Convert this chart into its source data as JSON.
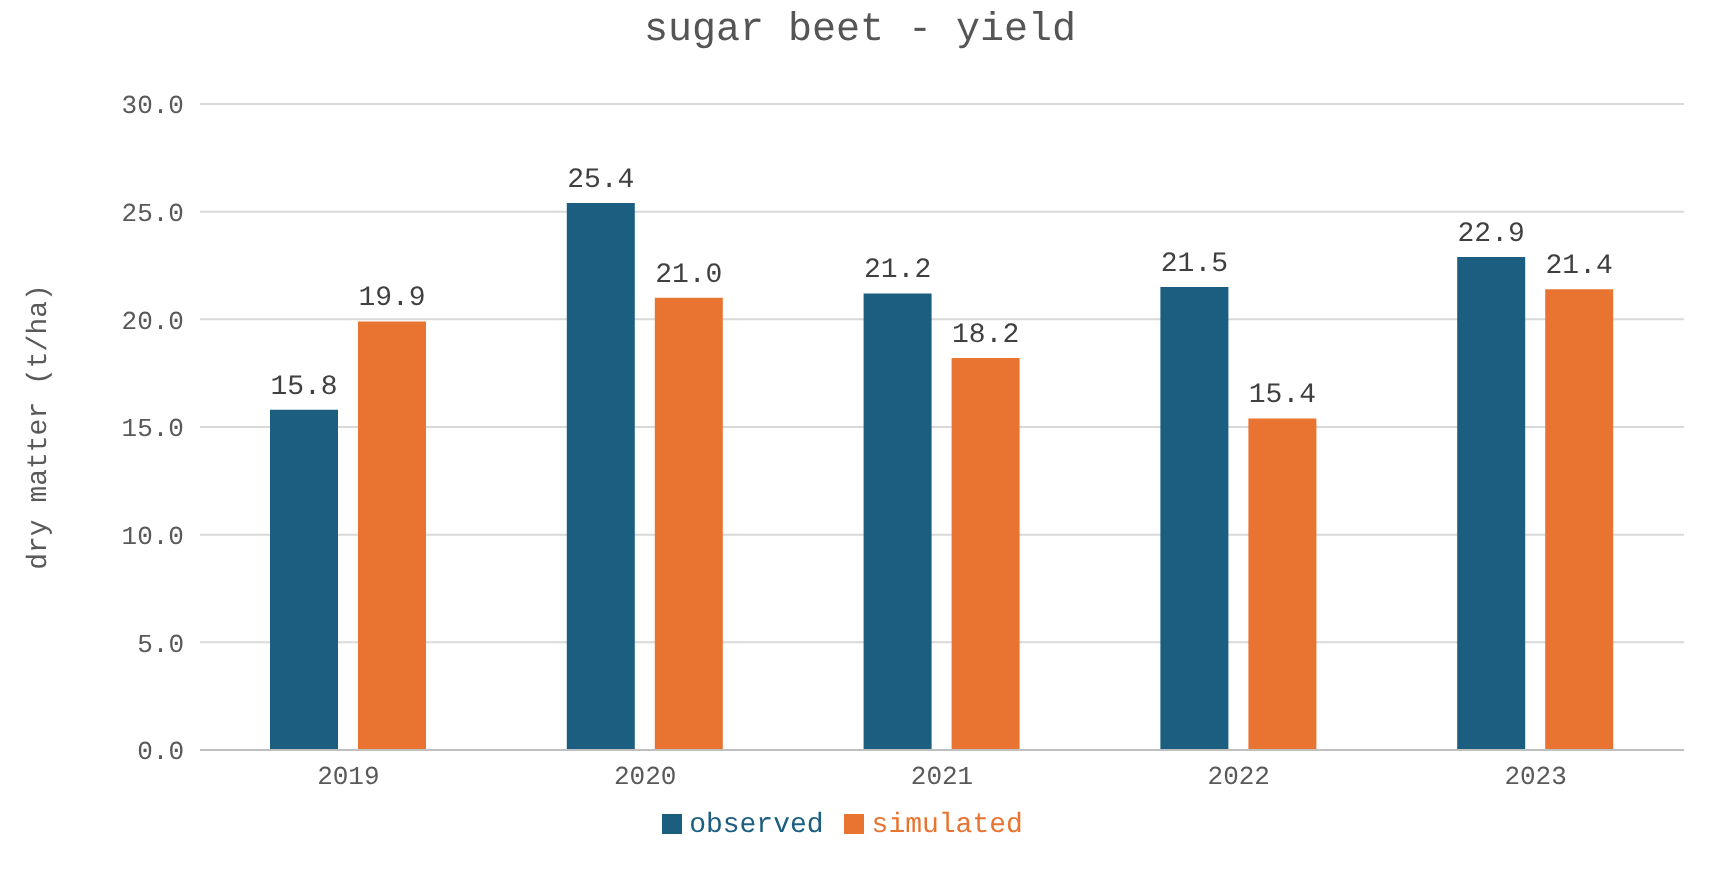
{
  "chart_data": {
    "type": "bar",
    "title": "sugar beet - yield",
    "ylabel": "dry matter (t/ha)",
    "categories": [
      "2019",
      "2020",
      "2021",
      "2022",
      "2023"
    ],
    "series": [
      {
        "name": "observed",
        "color": "#1b5e80",
        "values": [
          15.8,
          25.4,
          21.2,
          21.5,
          22.9
        ],
        "value_labels": [
          "15.8",
          "25.4",
          "21.2",
          "21.5",
          "22.9"
        ]
      },
      {
        "name": "simulated",
        "color": "#e97432",
        "values": [
          19.9,
          21.0,
          18.2,
          15.4,
          21.4
        ],
        "value_labels": [
          "19.9",
          "21.0",
          "18.2",
          "15.4",
          "21.4"
        ]
      }
    ],
    "ylim": [
      0,
      30
    ],
    "yticks": [
      {
        "value": 0,
        "label": "0.0"
      },
      {
        "value": 5,
        "label": "5.0"
      },
      {
        "value": 10,
        "label": "10.0"
      },
      {
        "value": 15,
        "label": "15.0"
      },
      {
        "value": 20,
        "label": "20.0"
      },
      {
        "value": 25,
        "label": "25.0"
      },
      {
        "value": 30,
        "label": "30.0"
      }
    ],
    "grid": "y",
    "legend": "bottom"
  }
}
